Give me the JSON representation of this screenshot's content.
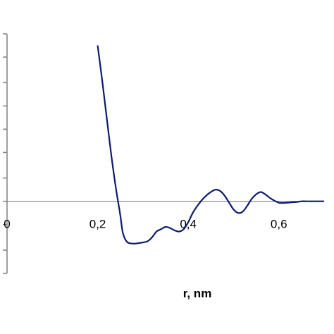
{
  "chart_data": {
    "type": "line",
    "title": "",
    "xlabel": "r, nm",
    "ylabel": "",
    "xlim": [
      0,
      0.7
    ],
    "ylim": [
      -0.31,
      0.72
    ],
    "x_ticks": [
      0,
      0.2,
      0.4,
      0.6
    ],
    "x_tick_labels": [
      "0",
      "0,2",
      "0,4",
      "0,6"
    ],
    "y_ticks": [
      -0.31,
      -0.21,
      -0.1,
      0,
      0.1,
      0.21,
      0.31,
      0.41,
      0.51,
      0.62,
      0.72
    ],
    "grid": false,
    "legend": "none",
    "colors": {
      "line": "#0d1a6b",
      "axis": "#808080",
      "zero_line": "#808080"
    },
    "series": [
      {
        "x": [
          0.2,
          0.21,
          0.22,
          0.23,
          0.24,
          0.245,
          0.25,
          0.255,
          0.26,
          0.265,
          0.27,
          0.28,
          0.29,
          0.3,
          0.31,
          0.32,
          0.33,
          0.34,
          0.35,
          0.36,
          0.37,
          0.38,
          0.39,
          0.4,
          0.41,
          0.42,
          0.43,
          0.44,
          0.45,
          0.46,
          0.47,
          0.48,
          0.49,
          0.5,
          0.51,
          0.52,
          0.53,
          0.54,
          0.55,
          0.56,
          0.57,
          0.58,
          0.59,
          0.6,
          0.61,
          0.62,
          0.63,
          0.64,
          0.65,
          0.66,
          0.67,
          0.68,
          0.69,
          0.7
        ],
        "y": [
          0.67,
          0.52,
          0.36,
          0.2,
          0.06,
          0.0,
          -0.06,
          -0.13,
          -0.16,
          -0.175,
          -0.18,
          -0.182,
          -0.18,
          -0.177,
          -0.172,
          -0.155,
          -0.13,
          -0.12,
          -0.11,
          -0.115,
          -0.125,
          -0.13,
          -0.12,
          -0.09,
          -0.05,
          -0.02,
          0.005,
          0.025,
          0.04,
          0.05,
          0.045,
          0.025,
          -0.005,
          -0.035,
          -0.05,
          -0.045,
          -0.02,
          0.01,
          0.03,
          0.04,
          0.03,
          0.015,
          0.003,
          -0.006,
          -0.007,
          -0.006,
          -0.004,
          -0.003,
          0.0,
          0.0,
          0.0,
          0.0,
          0.0,
          0.0
        ]
      }
    ]
  }
}
